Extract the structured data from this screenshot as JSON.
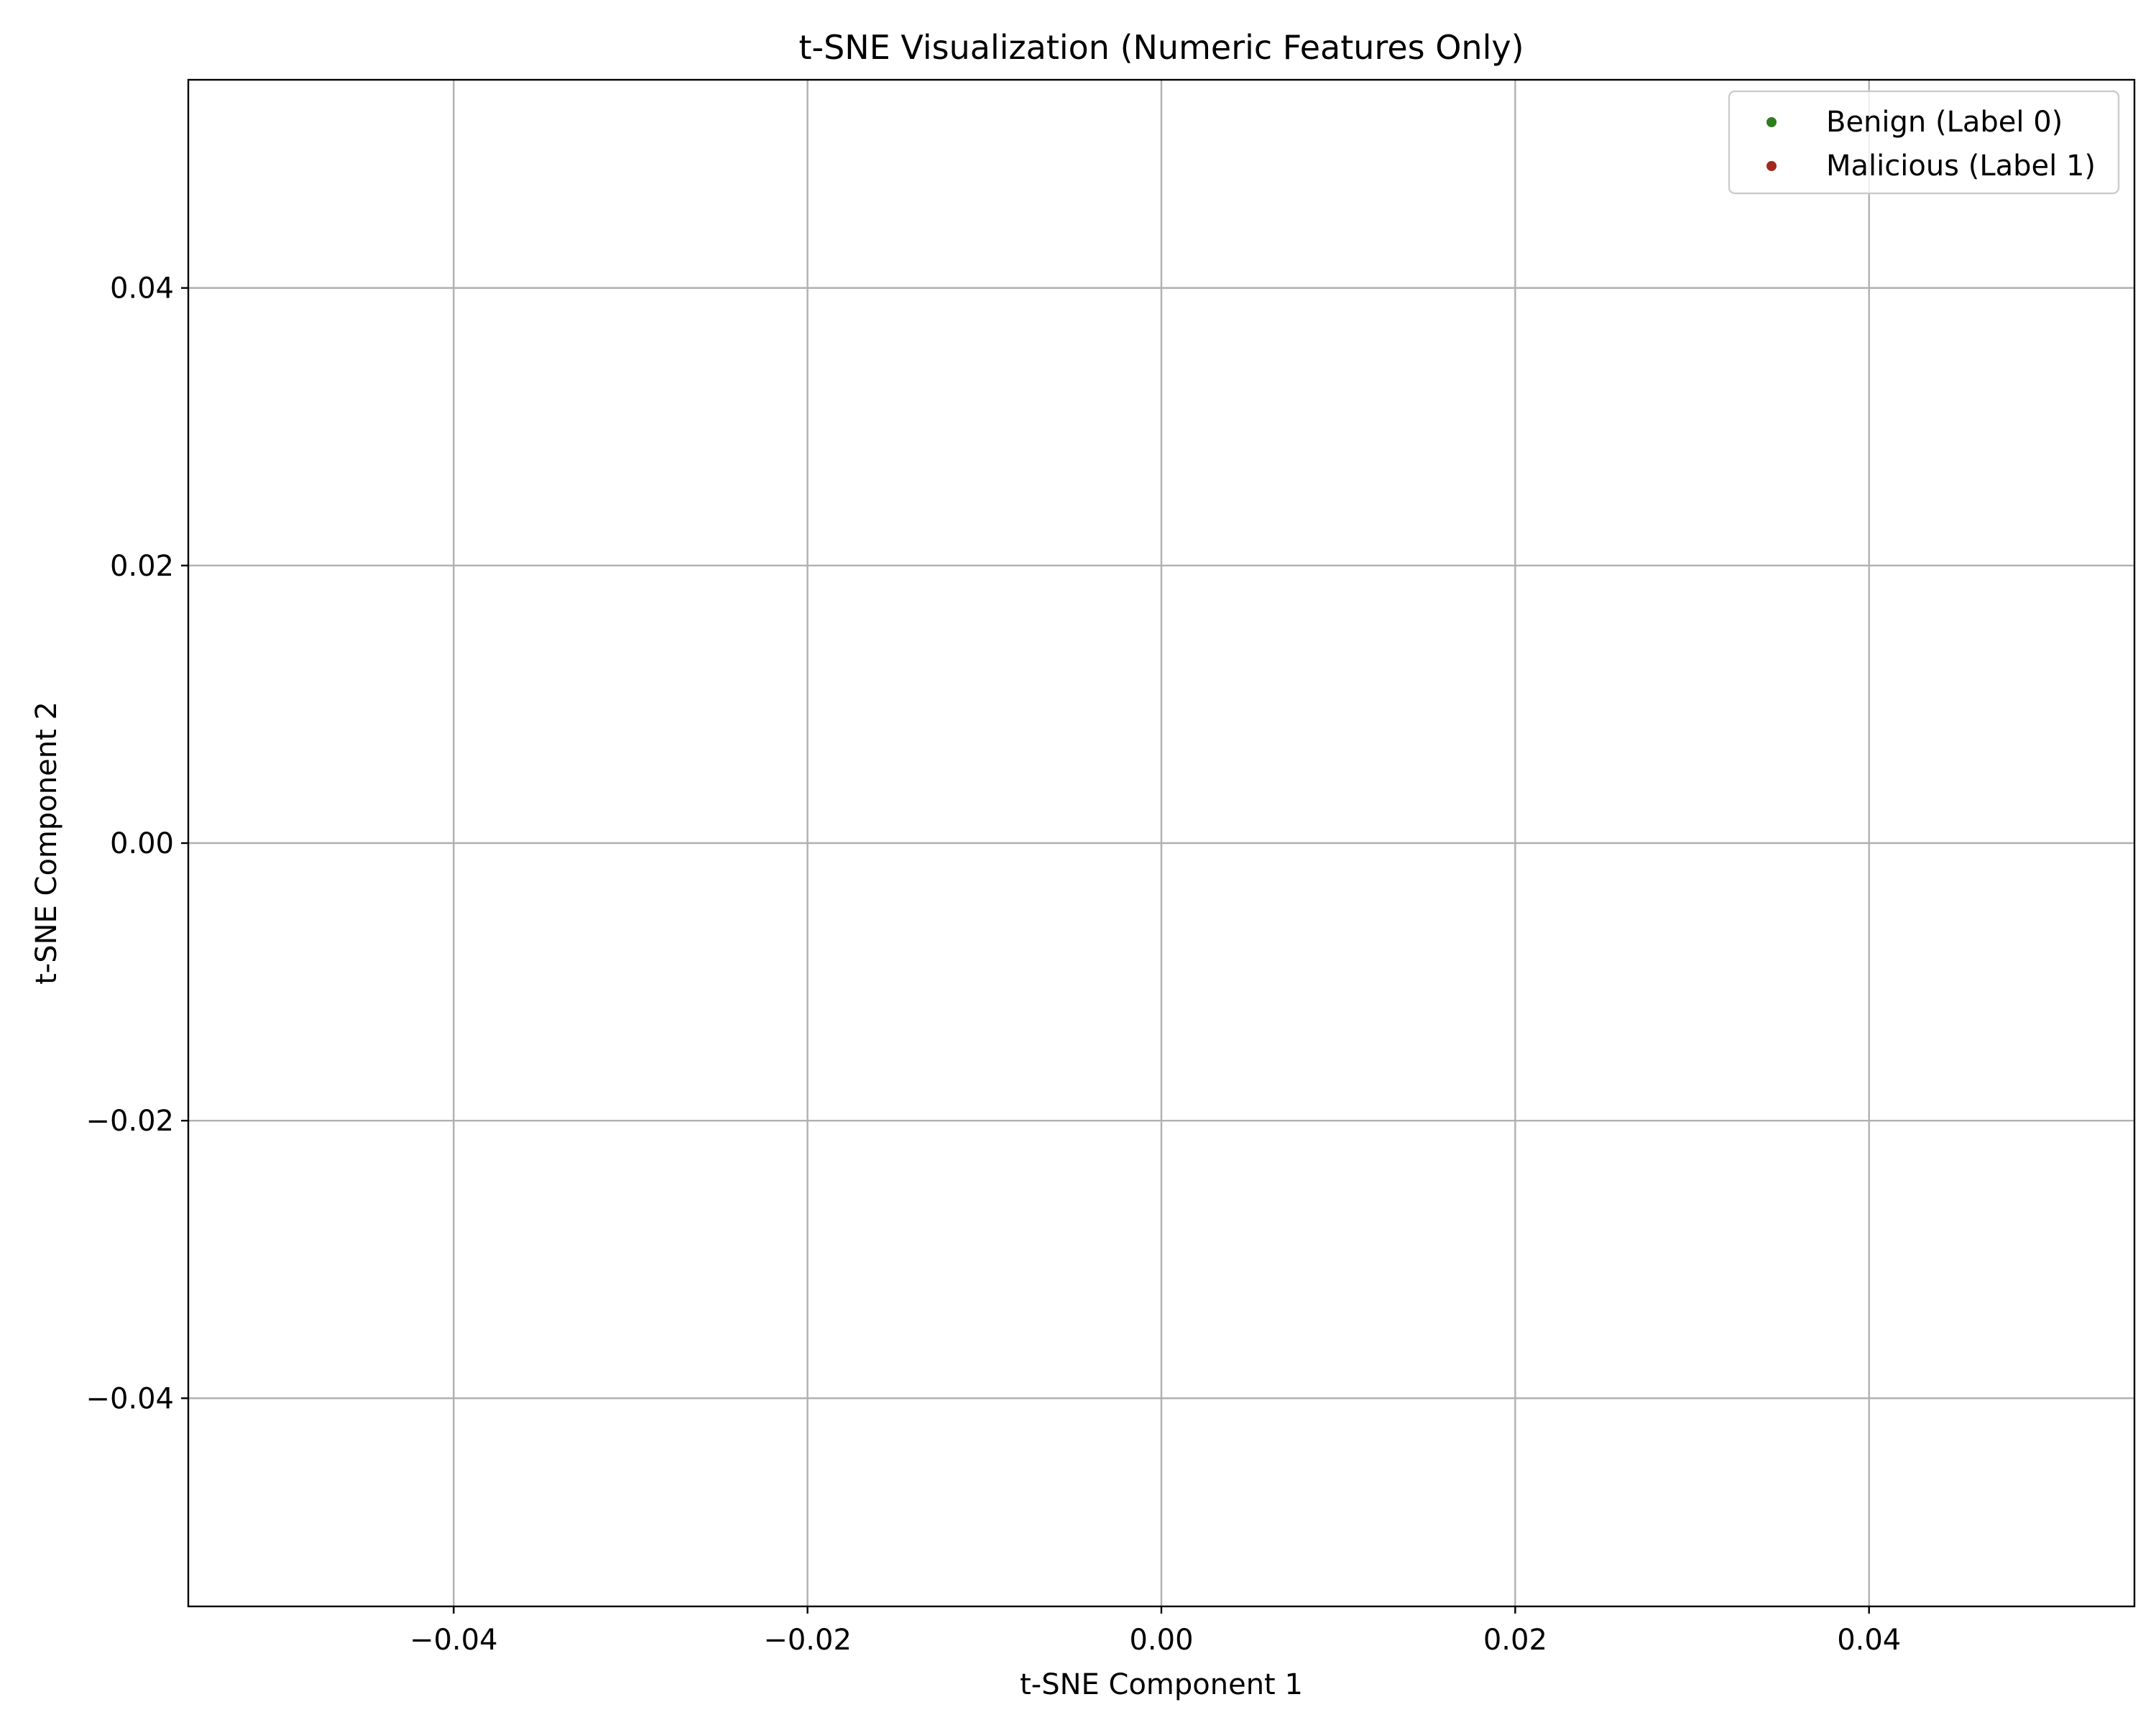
{
  "chart_data": {
    "type": "scatter",
    "title": "t-SNE Visualization (Numeric Features Only)",
    "xlabel": "t-SNE Component 1",
    "ylabel": "t-SNE Component 2",
    "xlim": [
      -0.055,
      0.055
    ],
    "ylim": [
      -0.055,
      0.055
    ],
    "xticks": [
      -0.04,
      -0.02,
      0.0,
      0.02,
      0.04
    ],
    "yticks": [
      -0.04,
      -0.02,
      0.0,
      0.02,
      0.04
    ],
    "xtick_labels": [
      "−0.04",
      "−0.02",
      "0.00",
      "0.02",
      "0.04"
    ],
    "ytick_labels": [
      "−0.04",
      "−0.02",
      "0.00",
      "0.02",
      "0.04"
    ],
    "grid": true,
    "legend_position": "top-right",
    "series": [
      {
        "name": "Benign (Label 0)",
        "color": "#2e7d1f",
        "points": []
      },
      {
        "name": "Malicious (Label 1)",
        "color": "#a12a1e",
        "points": []
      }
    ]
  }
}
